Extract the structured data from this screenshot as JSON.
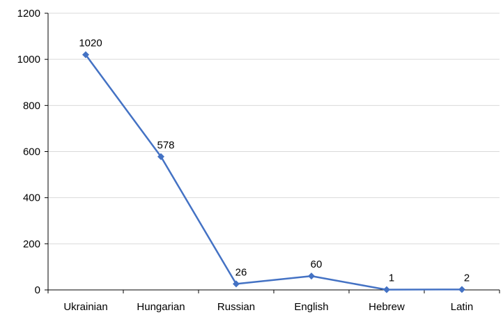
{
  "chart_data": {
    "type": "line",
    "title": "",
    "xlabel": "",
    "ylabel": "",
    "categories": [
      "Ukrainian",
      "Hungarian",
      "Russian",
      "English",
      "Hebrew",
      "Latin"
    ],
    "series": [
      {
        "values": [
          1020,
          578,
          26,
          60,
          1,
          2
        ],
        "color": "#4472c4",
        "marker": "diamond"
      }
    ],
    "ylim": [
      0,
      1200
    ],
    "yticks": [
      "0",
      "200",
      "400",
      "600",
      "800",
      "1000",
      "1200"
    ],
    "grid": "horizontal",
    "legend": "none",
    "data_labels": [
      "1020",
      "578",
      "26",
      "60",
      "1",
      "2"
    ]
  }
}
